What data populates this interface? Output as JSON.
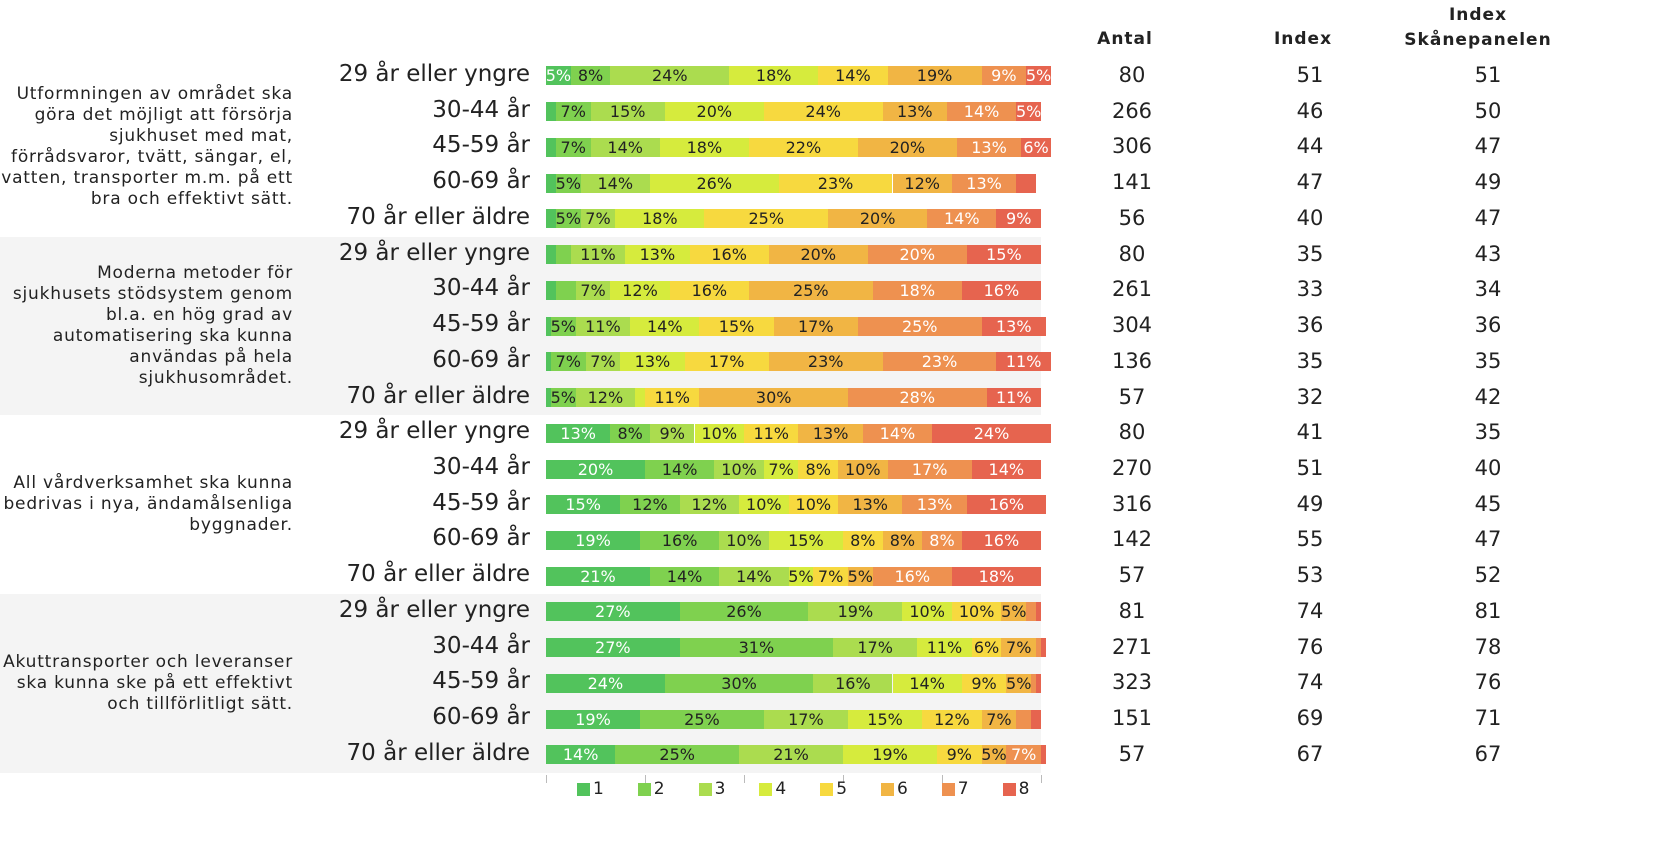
{
  "chart_data": {
    "type": "stacked_bar",
    "columns": [
      "Antal",
      "Index",
      "Index Skånepanelen"
    ],
    "xlim": [
      0,
      100
    ],
    "xticks": [
      0,
      20,
      40,
      60,
      80,
      100
    ],
    "series": [
      {
        "name": "1",
        "color": "#52c35c"
      },
      {
        "name": "2",
        "color": "#7fd14f"
      },
      {
        "name": "3",
        "color": "#abdc4f"
      },
      {
        "name": "4",
        "color": "#d6eb3d"
      },
      {
        "name": "5",
        "color": "#f7d93f"
      },
      {
        "name": "6",
        "color": "#f1b544"
      },
      {
        "name": "7",
        "color": "#ee9150"
      },
      {
        "name": "8",
        "color": "#e6644f"
      }
    ],
    "groups": [
      {
        "question": "Utformningen av området ska göra det möjligt att försörja sjukhuset med mat, förrådsvaror, tvätt, sängar, el, vatten, transporter m.m. på ett bra och effektivt sätt.",
        "rows": [
          {
            "label": "29 år eller yngre",
            "values": [
              5,
              8,
              24,
              18,
              14,
              19,
              9,
              5
            ],
            "value_labels": [
              "5%",
              "8%",
              "24%",
              "18%",
              "14%",
              "19%",
              "9%",
              "5%"
            ],
            "antal": 80,
            "index": 51,
            "index_skane": 51
          },
          {
            "label": "30-44 år",
            "values": [
              2,
              7,
              15,
              20,
              24,
              13,
              14,
              5
            ],
            "value_labels": [
              null,
              "7%",
              "15%",
              "20%",
              "24%",
              "13%",
              "14%",
              "5%"
            ],
            "antal": 266,
            "index": 46,
            "index_skane": 50
          },
          {
            "label": "45-59 år",
            "values": [
              2,
              7,
              14,
              18,
              22,
              20,
              13,
              6
            ],
            "value_labels": [
              null,
              "7%",
              "14%",
              "18%",
              "22%",
              "20%",
              "13%",
              "6%"
            ],
            "antal": 306,
            "index": 44,
            "index_skane": 47
          },
          {
            "label": "60-69 år",
            "values": [
              2,
              5,
              14,
              26,
              23,
              12,
              13,
              4
            ],
            "value_labels": [
              null,
              "5%",
              "14%",
              "26%",
              "23%",
              "12%",
              "13%",
              null
            ],
            "antal": 141,
            "index": 47,
            "index_skane": 49
          },
          {
            "label": "70 år eller äldre",
            "values": [
              2,
              5,
              7,
              18,
              25,
              20,
              14,
              9
            ],
            "value_labels": [
              null,
              "5%",
              "7%",
              "18%",
              "25%",
              "20%",
              "14%",
              "9%"
            ],
            "antal": 56,
            "index": 40,
            "index_skane": 47
          }
        ]
      },
      {
        "question": "Moderna metoder för sjukhusets stödsystem genom bl.a. en hög grad av automatisering ska kunna användas på hela sjukhusområdet.",
        "rows": [
          {
            "label": "29 år eller yngre",
            "values": [
              2,
              3,
              11,
              13,
              16,
              20,
              20,
              15
            ],
            "value_labels": [
              null,
              null,
              "11%",
              "13%",
              "16%",
              "20%",
              "20%",
              "15%"
            ],
            "antal": 80,
            "index": 35,
            "index_skane": 43
          },
          {
            "label": "30-44 år",
            "values": [
              2,
              4,
              7,
              12,
              16,
              25,
              18,
              16
            ],
            "value_labels": [
              null,
              null,
              "7%",
              "12%",
              "16%",
              "25%",
              "18%",
              "16%"
            ],
            "antal": 261,
            "index": 33,
            "index_skane": 34
          },
          {
            "label": "45-59 år",
            "values": [
              1,
              5,
              11,
              14,
              15,
              17,
              25,
              13
            ],
            "value_labels": [
              null,
              "5%",
              "11%",
              "14%",
              "15%",
              "17%",
              "25%",
              "13%"
            ],
            "antal": 304,
            "index": 36,
            "index_skane": 36
          },
          {
            "label": "60-69 år",
            "values": [
              1,
              7,
              7,
              13,
              17,
              23,
              23,
              11
            ],
            "value_labels": [
              null,
              "7%",
              "7%",
              "13%",
              "17%",
              "23%",
              "23%",
              "11%"
            ],
            "antal": 136,
            "index": 35,
            "index_skane": 35
          },
          {
            "label": "70 år eller äldre",
            "values": [
              1,
              5,
              12,
              2,
              11,
              30,
              28,
              11
            ],
            "value_labels": [
              null,
              "5%",
              "12%",
              null,
              "11%",
              "30%",
              "28%",
              "11%"
            ],
            "antal": 57,
            "index": 32,
            "index_skane": 42
          }
        ]
      },
      {
        "question": "All vårdverksamhet ska kunna bedrivas i nya, ändamålsenliga byggnader.",
        "rows": [
          {
            "label": "29 år eller yngre",
            "values": [
              13,
              8,
              9,
              10,
              11,
              13,
              14,
              24
            ],
            "value_labels": [
              "13%",
              "8%",
              "9%",
              "10%",
              "11%",
              "13%",
              "14%",
              "24%"
            ],
            "antal": 80,
            "index": 41,
            "index_skane": 35
          },
          {
            "label": "30-44 år",
            "values": [
              20,
              14,
              10,
              7,
              8,
              10,
              17,
              14
            ],
            "value_labels": [
              "20%",
              "14%",
              "10%",
              "7%",
              "8%",
              "10%",
              "17%",
              "14%"
            ],
            "antal": 270,
            "index": 51,
            "index_skane": 40
          },
          {
            "label": "45-59 år",
            "values": [
              15,
              12,
              12,
              10,
              10,
              13,
              13,
              16
            ],
            "value_labels": [
              "15%",
              "12%",
              "12%",
              "10%",
              "10%",
              "13%",
              "13%",
              "16%"
            ],
            "antal": 316,
            "index": 49,
            "index_skane": 45
          },
          {
            "label": "60-69 år",
            "values": [
              19,
              16,
              10,
              15,
              8,
              8,
              8,
              16
            ],
            "value_labels": [
              "19%",
              "16%",
              "10%",
              "15%",
              "8%",
              "8%",
              "8%",
              "16%"
            ],
            "antal": 142,
            "index": 55,
            "index_skane": 47
          },
          {
            "label": "70 år eller äldre",
            "values": [
              21,
              14,
              14,
              5,
              7,
              5,
              16,
              18
            ],
            "value_labels": [
              "21%",
              "14%",
              "14%",
              "5%",
              "7%",
              "5%",
              "16%",
              "18%"
            ],
            "antal": 57,
            "index": 53,
            "index_skane": 52
          }
        ]
      },
      {
        "question": "Akuttransporter och leveranser ska kunna ske på ett effektivt och tillförlitligt sätt.",
        "rows": [
          {
            "label": "29 år eller yngre",
            "values": [
              27,
              26,
              19,
              10,
              10,
              5,
              2,
              1
            ],
            "value_labels": [
              "27%",
              "26%",
              "19%",
              "10%",
              "10%",
              "5%",
              null,
              null
            ],
            "antal": 81,
            "index": 74,
            "index_skane": 81
          },
          {
            "label": "30-44 år",
            "values": [
              27,
              31,
              17,
              11,
              6,
              7,
              1,
              1
            ],
            "value_labels": [
              "27%",
              "31%",
              "17%",
              "11%",
              "6%",
              "7%",
              null,
              null
            ],
            "antal": 271,
            "index": 76,
            "index_skane": 78
          },
          {
            "label": "45-59 år",
            "values": [
              24,
              30,
              16,
              14,
              9,
              5,
              1,
              1
            ],
            "value_labels": [
              "24%",
              "30%",
              "16%",
              "14%",
              "9%",
              "5%",
              null,
              null
            ],
            "antal": 323,
            "index": 74,
            "index_skane": 76
          },
          {
            "label": "60-69 år",
            "values": [
              19,
              25,
              17,
              15,
              12,
              7,
              3,
              2
            ],
            "value_labels": [
              "19%",
              "25%",
              "17%",
              "15%",
              "12%",
              "7%",
              null,
              null
            ],
            "antal": 151,
            "index": 69,
            "index_skane": 71
          },
          {
            "label": "70 år eller äldre",
            "values": [
              14,
              25,
              21,
              19,
              9,
              5,
              7,
              1
            ],
            "value_labels": [
              "14%",
              "25%",
              "21%",
              "19%",
              "9%",
              "5%",
              "7%",
              null
            ],
            "antal": 57,
            "index": 67,
            "index_skane": 67
          }
        ]
      }
    ]
  }
}
